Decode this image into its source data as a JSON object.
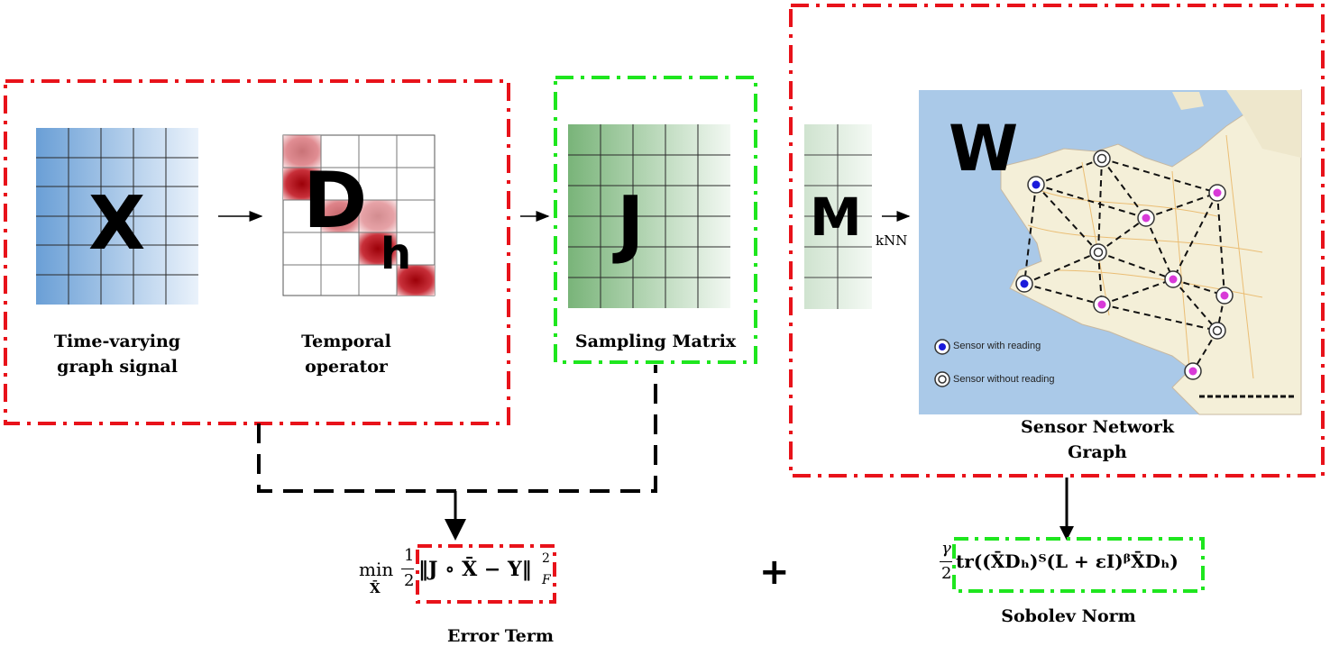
{
  "colors": {
    "red_dash": "#e8121a",
    "green_dash": "#1ee61e",
    "black_dash": "#000000",
    "x_grid_fill": "#6a9fd6",
    "j_grid_fill": "#6aab6a",
    "m_grid_fill": "#cfe0cf",
    "d_grid_fill": "#b0000a",
    "sea": "#aac9e8",
    "land": "#f4efd8",
    "sensor_reading": "#1a1adb",
    "sensor_no_reading": "#ffffff",
    "sensor_pink": "#d83ad8"
  },
  "blocks": {
    "x": {
      "letter": "X",
      "caption_line1": "Time-varying",
      "caption_line2": "graph signal"
    },
    "d": {
      "letter": "D",
      "subscript": "h",
      "caption_line1": "Temporal",
      "caption_line2": "operator"
    },
    "j": {
      "letter": "J",
      "caption": "Sampling Matrix"
    },
    "m": {
      "letter": "M",
      "arrow_label": "kNN"
    },
    "map": {
      "letter": "W",
      "caption_line1": "Sensor Network",
      "caption_line2": "Graph",
      "legend_reading": "Sensor with reading",
      "legend_no_reading": "Sensor without reading"
    }
  },
  "formulas": {
    "error_min": "min",
    "error_min_sub": "X̄",
    "error_frac_num": "1",
    "error_frac_den": "2",
    "error_body": "‖J ∘ X̄ − Y‖",
    "error_sup": "2",
    "error_sub": "F",
    "plus": "+",
    "sobolev_frac_num": "γ",
    "sobolev_frac_den": "2",
    "sobolev_body": "tr((X̄Dₕ)ᵀ(L + εI)ᵝX̄Dₕ)"
  },
  "labels": {
    "error_term": "Error Term",
    "sobolev_norm": "Sobolev Norm"
  }
}
